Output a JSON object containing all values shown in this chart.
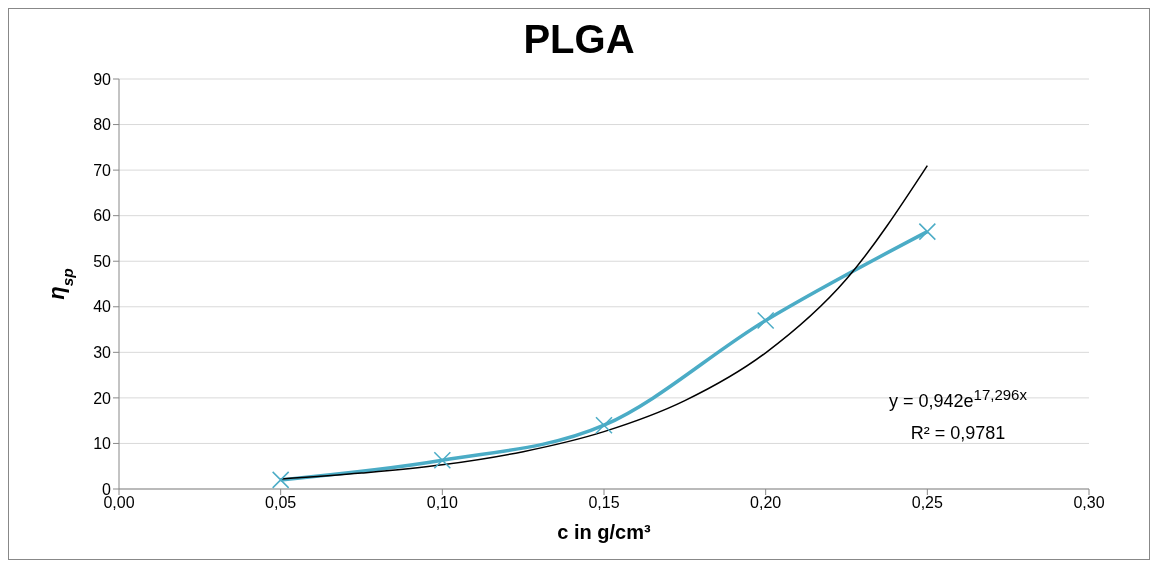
{
  "chart_data": {
    "type": "line",
    "title": "PLGA",
    "xlabel": "c in g/cm³",
    "ylabel": "η$_{sp}$",
    "x": [
      0.05,
      0.1,
      0.15,
      0.2,
      0.25
    ],
    "series": [
      {
        "color": "#4bacc6",
        "values": [
          2,
          6.3,
          14,
          37,
          56.5
        ],
        "marker": "cross"
      },
      {
        "type": "line",
        "color": "#000000",
        "marker": "none",
        "x": [
          0.05,
          0.075,
          0.1,
          0.125,
          0.15,
          0.175,
          0.2,
          0.225,
          0.25
        ],
        "values": [
          2.2,
          3.5,
          5.3,
          8.2,
          12.6,
          19.4,
          29.9,
          46.1,
          71
        ]
      }
    ],
    "xlim": [
      0,
      0.3
    ],
    "xticks": [
      {
        "value": 0,
        "label": "0,00"
      },
      {
        "value": 0.05,
        "label": "0,05"
      },
      {
        "value": 0.1,
        "label": "0,10"
      },
      {
        "value": 0.15,
        "label": "0,15"
      },
      {
        "value": 0.2,
        "label": "0,20"
      },
      {
        "value": 0.25,
        "label": "0,25"
      },
      {
        "value": 0.3,
        "label": "0,30"
      }
    ],
    "ylim": [
      0,
      90
    ],
    "yticks": [
      0,
      10,
      20,
      30,
      40,
      50,
      60,
      70,
      80,
      90
    ],
    "grid": "y",
    "annotations": [
      "y = 0,942e$^{17,296x}$",
      "R² = 0,9781"
    ]
  }
}
